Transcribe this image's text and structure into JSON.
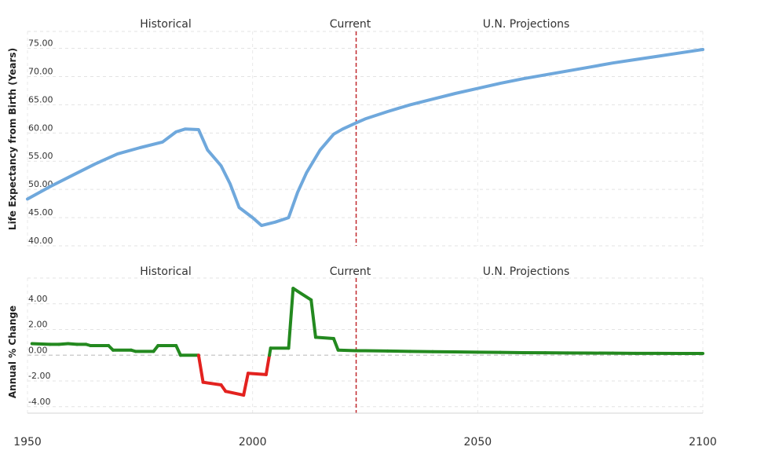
{
  "colors": {
    "life_line": "#6fa8dc",
    "change_positive": "#23891f",
    "change_negative": "#e3221f",
    "current_marker": "#c0282d",
    "grid": "#e3e3e3"
  },
  "x_axis": {
    "range": [
      1950,
      2100
    ],
    "ticks": [
      "1950",
      "2000",
      "2050",
      "2100"
    ]
  },
  "current_year": 2023,
  "chart_data": [
    {
      "type": "line",
      "ylabel": "Life Expectancy from Birth (Years)",
      "ylim": [
        40,
        78
      ],
      "yticks": [
        "40.00",
        "45.00",
        "50.00",
        "55.00",
        "60.00",
        "65.00",
        "70.00",
        "75.00"
      ],
      "grid": true,
      "regions": [
        "Historical",
        "Current",
        "U.N. Projections"
      ],
      "x": [
        1950,
        1955,
        1960,
        1965,
        1970,
        1975,
        1980,
        1983,
        1985,
        1988,
        1990,
        1993,
        1995,
        1997,
        2000,
        2002,
        2005,
        2008,
        2010,
        2012,
        2015,
        2018,
        2020,
        2023,
        2025,
        2030,
        2035,
        2040,
        2045,
        2050,
        2055,
        2060,
        2065,
        2070,
        2075,
        2080,
        2085,
        2090,
        2095,
        2100
      ],
      "y": [
        48.3,
        50.5,
        52.5,
        54.5,
        56.3,
        57.4,
        58.4,
        60.2,
        60.7,
        60.6,
        57.0,
        54.2,
        51.0,
        46.8,
        45.0,
        43.6,
        44.2,
        45.0,
        49.5,
        53.0,
        57.0,
        59.8,
        60.7,
        61.8,
        62.5,
        63.8,
        65.0,
        66.0,
        67.0,
        67.9,
        68.8,
        69.6,
        70.3,
        71.0,
        71.7,
        72.4,
        73.0,
        73.6,
        74.2,
        74.8
      ]
    },
    {
      "type": "line",
      "ylabel": "Annual % Change",
      "ylim": [
        -4.5,
        6
      ],
      "yticks": [
        "-4.00",
        "-2.00",
        "0.00",
        "2.00",
        "4.00"
      ],
      "grid": true,
      "regions": [
        "Historical",
        "Current",
        "U.N. Projections"
      ],
      "x": [
        1951,
        1955,
        1957,
        1959,
        1961,
        1963,
        1964,
        1968,
        1969,
        1973,
        1974,
        1978,
        1979,
        1983,
        1984,
        1988,
        1989,
        1993,
        1994,
        1998,
        1999,
        2003,
        2004,
        2008,
        2009,
        2013,
        2014,
        2018,
        2019,
        2023,
        2025,
        2030,
        2035,
        2040,
        2045,
        2050,
        2055,
        2060,
        2065,
        2070,
        2075,
        2080,
        2085,
        2090,
        2095,
        2100
      ],
      "y": [
        0.9,
        0.85,
        0.85,
        0.9,
        0.85,
        0.85,
        0.75,
        0.75,
        0.4,
        0.4,
        0.3,
        0.3,
        0.75,
        0.75,
        0.0,
        0.0,
        -2.1,
        -2.3,
        -2.8,
        -3.1,
        -1.4,
        -1.5,
        0.55,
        0.55,
        5.2,
        4.3,
        1.4,
        1.3,
        0.4,
        0.35,
        0.35,
        0.33,
        0.3,
        0.28,
        0.26,
        0.24,
        0.22,
        0.2,
        0.19,
        0.18,
        0.17,
        0.16,
        0.15,
        0.15,
        0.14,
        0.14
      ]
    }
  ]
}
